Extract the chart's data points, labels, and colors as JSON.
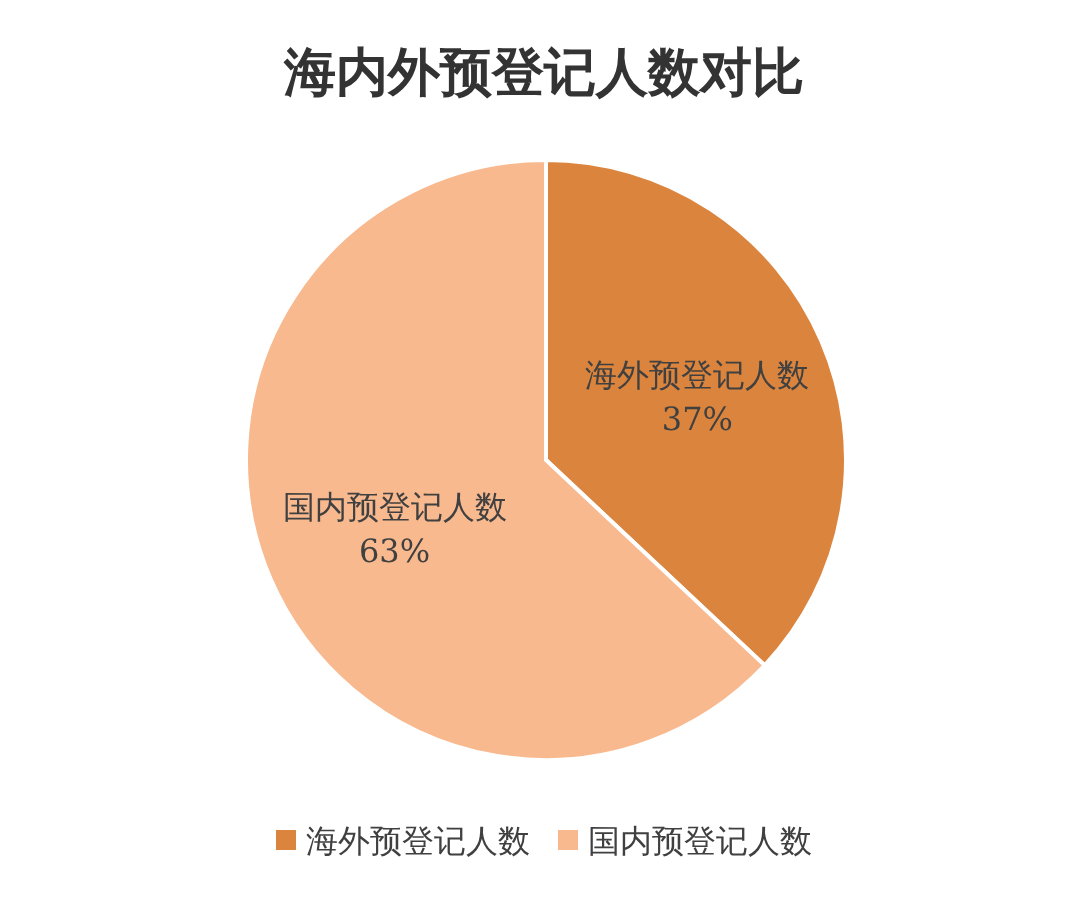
{
  "chart_data": {
    "type": "pie",
    "title": "海内外预登记人数对比",
    "categories": [
      "海外预登记人数",
      "国内预登记人数"
    ],
    "values": [
      37,
      63
    ],
    "colors": [
      "#db843d",
      "#f8b98f"
    ],
    "legend": "bottom",
    "value_labels": [
      "37%",
      "63%"
    ]
  }
}
